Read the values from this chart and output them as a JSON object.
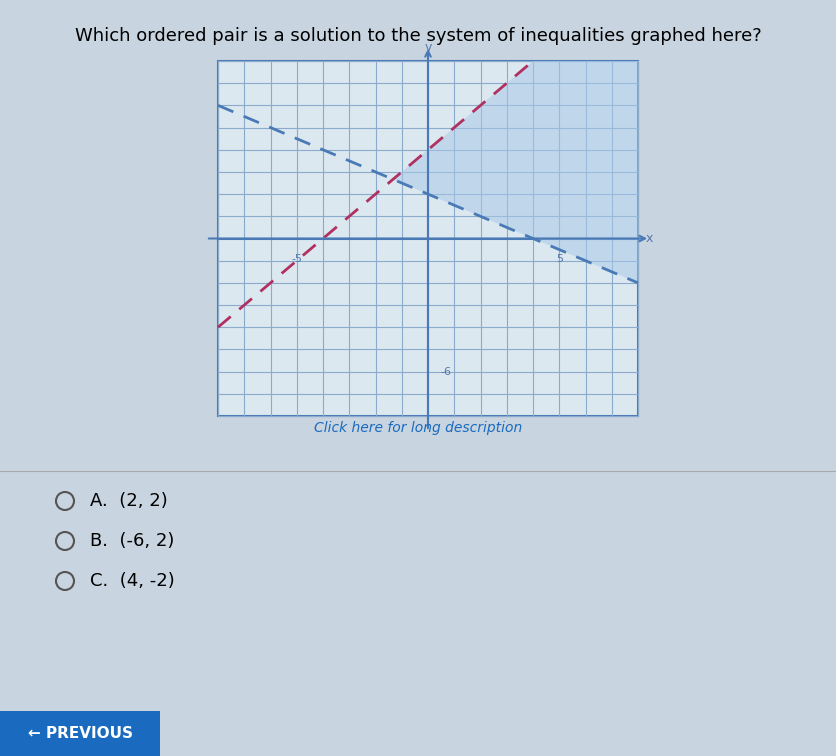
{
  "title": "Which ordered pair is a solution to the system of inequalities graphed here?",
  "subtitle": "Click here for long description",
  "xlim": [
    -8,
    8
  ],
  "ylim": [
    -8,
    8
  ],
  "grid_minor": true,
  "line1_slope": 1,
  "line1_intercept": 4,
  "line1_color": "#b03060",
  "line2_slope": -0.5,
  "line2_intercept": 2,
  "line2_color": "#4a7ab5",
  "shade_color": "#a8c8e8",
  "shade_alpha": 0.55,
  "bg_color": "#c8d4e0",
  "graph_bg": "#dce8f0",
  "answer_options": [
    "A.  (2, 2)",
    "B.  (-6, 2)",
    "C.  (4, -2)"
  ],
  "question_text": "Which ordered pair is a solution to the system of inequalities graphed here?",
  "previous_button_color": "#1a6bbf",
  "tick_label_color": "#5577aa"
}
